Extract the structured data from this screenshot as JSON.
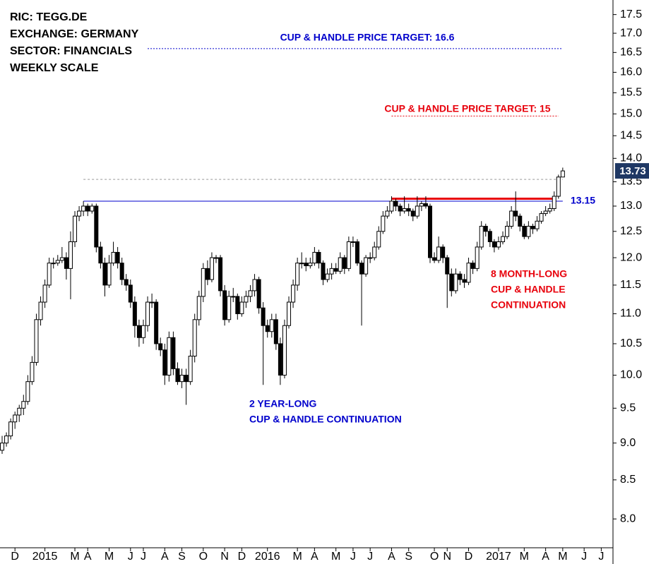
{
  "chart_data": {
    "type": "candlestick",
    "info": [
      "RIC: TEGG.DE",
      "EXCHANGE: GERMANY",
      "SECTOR: FINANCIALS",
      "WEEKLY SCALE"
    ],
    "log_scale": true,
    "ylim": [
      7.65,
      17.9
    ],
    "yticks": [
      {
        "value": 8,
        "label": "8.0"
      },
      8.5,
      {
        "value": 9,
        "label": "9.0"
      },
      9.5,
      {
        "value": 10,
        "label": "10.0"
      },
      10.5,
      {
        "value": 11,
        "label": "11.0"
      },
      11.5,
      {
        "value": 12,
        "label": "12.0"
      },
      12.5,
      {
        "value": 13,
        "label": "13.0"
      },
      13.5,
      {
        "value": 14,
        "label": "14.0"
      },
      14.5,
      {
        "value": 15,
        "label": "15.0"
      },
      15.5,
      {
        "value": 16,
        "label": "16.0"
      },
      16.5,
      {
        "value": 17,
        "label": "17.0"
      },
      17.5
    ],
    "up_color": "#ffffff",
    "down_color": "#000000",
    "categories": [
      null,
      null,
      null,
      "D",
      null,
      null,
      null,
      null,
      null,
      null,
      "2015",
      null,
      null,
      null,
      null,
      null,
      null,
      "M",
      null,
      null,
      "A",
      null,
      null,
      null,
      null,
      "M",
      null,
      null,
      null,
      null,
      "J",
      null,
      null,
      "J",
      null,
      null,
      null,
      null,
      "A",
      null,
      null,
      null,
      "S",
      null,
      null,
      null,
      null,
      "O",
      null,
      null,
      null,
      null,
      "N",
      null,
      null,
      null,
      "D",
      null,
      null,
      null,
      null,
      null,
      "2016",
      null,
      null,
      null,
      null,
      null,
      null,
      "M",
      null,
      null,
      null,
      "A",
      null,
      null,
      null,
      null,
      "M",
      null,
      null,
      null,
      "J",
      null,
      null,
      null,
      "J",
      null,
      null,
      null,
      null,
      "A",
      null,
      null,
      null,
      "S",
      null,
      null,
      null,
      null,
      null,
      "O",
      null,
      null,
      "N",
      null,
      null,
      null,
      null,
      "D",
      null,
      null,
      null,
      null,
      null,
      null,
      "2017",
      null,
      null,
      null,
      null,
      null,
      "M",
      null,
      null,
      null,
      null,
      "A",
      null,
      null,
      null,
      "M",
      null,
      null,
      null,
      null,
      "J",
      null,
      null,
      null,
      "J",
      null,
      null
    ],
    "candles": [
      [
        8.9,
        9.1,
        8.85,
        9.0
      ],
      [
        9.0,
        9.15,
        8.95,
        9.1
      ],
      [
        9.1,
        9.35,
        9.05,
        9.3
      ],
      [
        9.3,
        9.45,
        9.2,
        9.4
      ],
      [
        9.4,
        9.55,
        9.3,
        9.5
      ],
      [
        9.5,
        9.7,
        9.4,
        9.6
      ],
      [
        9.6,
        10.0,
        9.55,
        9.9
      ],
      [
        9.9,
        10.3,
        9.85,
        10.2
      ],
      [
        10.2,
        11.0,
        10.15,
        10.9
      ],
      [
        10.9,
        11.3,
        10.8,
        11.2
      ],
      [
        11.2,
        11.6,
        11.1,
        11.5
      ],
      [
        11.5,
        12.0,
        11.45,
        11.9
      ],
      [
        11.9,
        12.0,
        11.8,
        11.9
      ],
      [
        11.9,
        12.05,
        11.85,
        11.95
      ],
      [
        11.95,
        12.2,
        11.9,
        12.0
      ],
      [
        12.0,
        12.1,
        11.6,
        11.8
      ],
      [
        11.8,
        12.5,
        11.25,
        12.3
      ],
      [
        12.3,
        12.9,
        12.2,
        12.8
      ],
      [
        12.8,
        13.0,
        12.7,
        12.9
      ],
      [
        12.9,
        13.1,
        12.8,
        13.0
      ],
      [
        13.0,
        13.05,
        12.8,
        12.9
      ],
      [
        12.9,
        13.05,
        12.85,
        13.0
      ],
      [
        13.0,
        13.05,
        12.1,
        12.2
      ],
      [
        12.2,
        12.3,
        11.8,
        11.9
      ],
      [
        11.9,
        12.0,
        11.3,
        11.5
      ],
      [
        11.5,
        12.05,
        11.45,
        11.9
      ],
      [
        11.9,
        12.3,
        11.85,
        12.1
      ],
      [
        12.1,
        12.2,
        11.8,
        11.9
      ],
      [
        11.9,
        12.0,
        11.5,
        11.6
      ],
      [
        11.6,
        11.7,
        11.4,
        11.5
      ],
      [
        11.5,
        11.6,
        11.1,
        11.2
      ],
      [
        11.2,
        11.3,
        10.6,
        10.8
      ],
      [
        10.8,
        10.9,
        10.45,
        10.6
      ],
      [
        10.6,
        10.9,
        10.5,
        10.8
      ],
      [
        10.8,
        11.3,
        10.7,
        11.2
      ],
      [
        11.2,
        11.35,
        11.1,
        11.2
      ],
      [
        11.2,
        11.25,
        10.4,
        10.5
      ],
      [
        10.5,
        10.6,
        10.3,
        10.4
      ],
      [
        10.4,
        10.5,
        9.85,
        10.0
      ],
      [
        10.0,
        10.7,
        9.9,
        10.6
      ],
      [
        10.6,
        10.7,
        10.0,
        10.1
      ],
      [
        10.1,
        10.2,
        9.85,
        9.9
      ],
      [
        9.9,
        10.1,
        9.8,
        10.0
      ],
      [
        10.0,
        10.1,
        9.55,
        9.9
      ],
      [
        9.9,
        10.4,
        9.85,
        10.3
      ],
      [
        10.3,
        11.0,
        10.2,
        10.9
      ],
      [
        10.9,
        11.4,
        10.8,
        11.3
      ],
      [
        11.3,
        11.9,
        11.2,
        11.8
      ],
      [
        11.8,
        11.95,
        11.5,
        11.6
      ],
      [
        11.6,
        12.1,
        11.55,
        12.0
      ],
      [
        12.0,
        12.05,
        11.9,
        12.0
      ],
      [
        12.0,
        12.05,
        11.3,
        11.4
      ],
      [
        11.4,
        11.5,
        10.8,
        10.9
      ],
      [
        10.9,
        11.4,
        10.85,
        11.3
      ],
      [
        11.3,
        11.45,
        11.2,
        11.3
      ],
      [
        11.3,
        11.35,
        10.9,
        11.0
      ],
      [
        11.0,
        11.3,
        10.95,
        11.2
      ],
      [
        11.2,
        11.4,
        11.1,
        11.3
      ],
      [
        11.3,
        11.5,
        11.2,
        11.4
      ],
      [
        11.4,
        11.7,
        11.3,
        11.6
      ],
      [
        11.6,
        11.65,
        11.0,
        11.1
      ],
      [
        11.1,
        11.2,
        9.85,
        10.8
      ],
      [
        10.8,
        10.9,
        10.6,
        10.7
      ],
      [
        10.7,
        11.0,
        10.6,
        10.9
      ],
      [
        10.9,
        11.0,
        10.4,
        10.5
      ],
      [
        10.5,
        10.6,
        9.85,
        10.0
      ],
      [
        10.0,
        10.9,
        9.95,
        10.8
      ],
      [
        10.8,
        11.3,
        10.75,
        11.2
      ],
      [
        11.2,
        11.6,
        11.1,
        11.5
      ],
      [
        11.5,
        12.0,
        11.4,
        11.9
      ],
      [
        11.9,
        12.1,
        11.8,
        11.9
      ],
      [
        11.9,
        12.0,
        11.75,
        11.85
      ],
      [
        11.85,
        12.0,
        11.8,
        11.9
      ],
      [
        11.9,
        12.2,
        11.85,
        12.1
      ],
      [
        12.1,
        12.15,
        11.8,
        11.9
      ],
      [
        11.9,
        11.95,
        11.5,
        11.6
      ],
      [
        11.6,
        11.8,
        11.55,
        11.7
      ],
      [
        11.7,
        11.9,
        11.6,
        11.8
      ],
      [
        11.8,
        11.9,
        11.7,
        11.75
      ],
      [
        11.75,
        12.1,
        11.7,
        12.0
      ],
      [
        12.0,
        12.05,
        11.7,
        11.8
      ],
      [
        11.8,
        12.4,
        11.75,
        12.3
      ],
      [
        12.3,
        12.4,
        12.2,
        12.3
      ],
      [
        12.3,
        12.35,
        11.85,
        11.9
      ],
      [
        11.9,
        11.95,
        10.8,
        11.7
      ],
      [
        11.7,
        12.05,
        11.65,
        12.0
      ],
      [
        12.0,
        12.1,
        11.9,
        12.0
      ],
      [
        12.0,
        12.3,
        11.95,
        12.2
      ],
      [
        12.2,
        12.6,
        12.15,
        12.5
      ],
      [
        12.5,
        12.9,
        12.45,
        12.8
      ],
      [
        12.8,
        13.0,
        12.75,
        12.9
      ],
      [
        12.9,
        13.2,
        12.85,
        13.1
      ],
      [
        13.1,
        13.15,
        12.9,
        13.0
      ],
      [
        13.0,
        13.05,
        12.8,
        12.9
      ],
      [
        12.9,
        13.2,
        12.85,
        12.95
      ],
      [
        12.95,
        13.05,
        12.8,
        12.9
      ],
      [
        12.9,
        12.95,
        12.7,
        12.8
      ],
      [
        12.8,
        13.2,
        12.75,
        13.0
      ],
      [
        13.0,
        13.1,
        12.9,
        13.05
      ],
      [
        13.05,
        13.2,
        12.95,
        13.0
      ],
      [
        13.0,
        13.05,
        11.9,
        12.0
      ],
      [
        12.0,
        12.1,
        11.9,
        11.95
      ],
      [
        11.95,
        12.4,
        11.9,
        12.2
      ],
      [
        12.2,
        12.25,
        11.9,
        12.0
      ],
      [
        12.0,
        12.05,
        11.1,
        11.7
      ],
      [
        11.7,
        11.8,
        11.3,
        11.4
      ],
      [
        11.4,
        11.8,
        11.35,
        11.7
      ],
      [
        11.7,
        11.75,
        11.5,
        11.6
      ],
      [
        11.6,
        11.7,
        11.45,
        11.55
      ],
      [
        11.55,
        12.0,
        11.5,
        11.9
      ],
      [
        11.9,
        11.95,
        11.7,
        11.8
      ],
      [
        11.8,
        12.3,
        11.75,
        12.2
      ],
      [
        12.2,
        12.7,
        12.15,
        12.6
      ],
      [
        12.6,
        12.65,
        12.4,
        12.5
      ],
      [
        12.5,
        12.55,
        12.2,
        12.3
      ],
      [
        12.3,
        12.35,
        12.1,
        12.2
      ],
      [
        12.2,
        12.4,
        12.15,
        12.3
      ],
      [
        12.3,
        12.5,
        12.25,
        12.4
      ],
      [
        12.4,
        12.7,
        12.35,
        12.6
      ],
      [
        12.6,
        13.0,
        12.55,
        12.9
      ],
      [
        12.9,
        13.3,
        12.7,
        12.8
      ],
      [
        12.8,
        12.85,
        12.5,
        12.6
      ],
      [
        12.6,
        12.65,
        12.35,
        12.4
      ],
      [
        12.4,
        12.7,
        12.35,
        12.6
      ],
      [
        12.6,
        12.65,
        12.45,
        12.55
      ],
      [
        12.55,
        12.8,
        12.5,
        12.7
      ],
      [
        12.7,
        12.9,
        12.65,
        12.85
      ],
      [
        12.85,
        13.0,
        12.8,
        12.9
      ],
      [
        12.9,
        13.05,
        12.85,
        12.95
      ],
      [
        12.95,
        13.3,
        12.9,
        13.2
      ],
      [
        13.2,
        13.65,
        13.15,
        13.6
      ],
      [
        13.6,
        13.8,
        13.6,
        13.73
      ],
      null,
      null,
      null,
      null,
      null,
      null,
      null,
      null,
      null,
      null,
      null
    ],
    "last_price": 13.73,
    "levels": [
      {
        "value": 16.6,
        "label": "CUP & HANDLE PRICE TARGET: 16.6",
        "color": "#0000cc",
        "style": "dotted"
      },
      {
        "value": 14.95,
        "label": "CUP & HANDLE PRICE TARGET: 15",
        "color": "#e8000b",
        "style": "dotted"
      },
      {
        "value": 13.55,
        "color": "#999999",
        "style": "dashed"
      },
      {
        "value": 13.1,
        "color": "#0000cc",
        "style": "solid"
      },
      {
        "value": 13.15,
        "label": "13.15",
        "color": "#e8000b",
        "style": "thick"
      }
    ],
    "annotations": [
      {
        "lines": [
          "2 YEAR-LONG",
          "CUP & HANDLE CONTINUATION"
        ],
        "color": "#0000cc"
      },
      {
        "lines": [
          "8 MONTH-LONG",
          "CUP & HANDLE",
          "CONTINUATION"
        ],
        "color": "#e8000b"
      }
    ]
  }
}
